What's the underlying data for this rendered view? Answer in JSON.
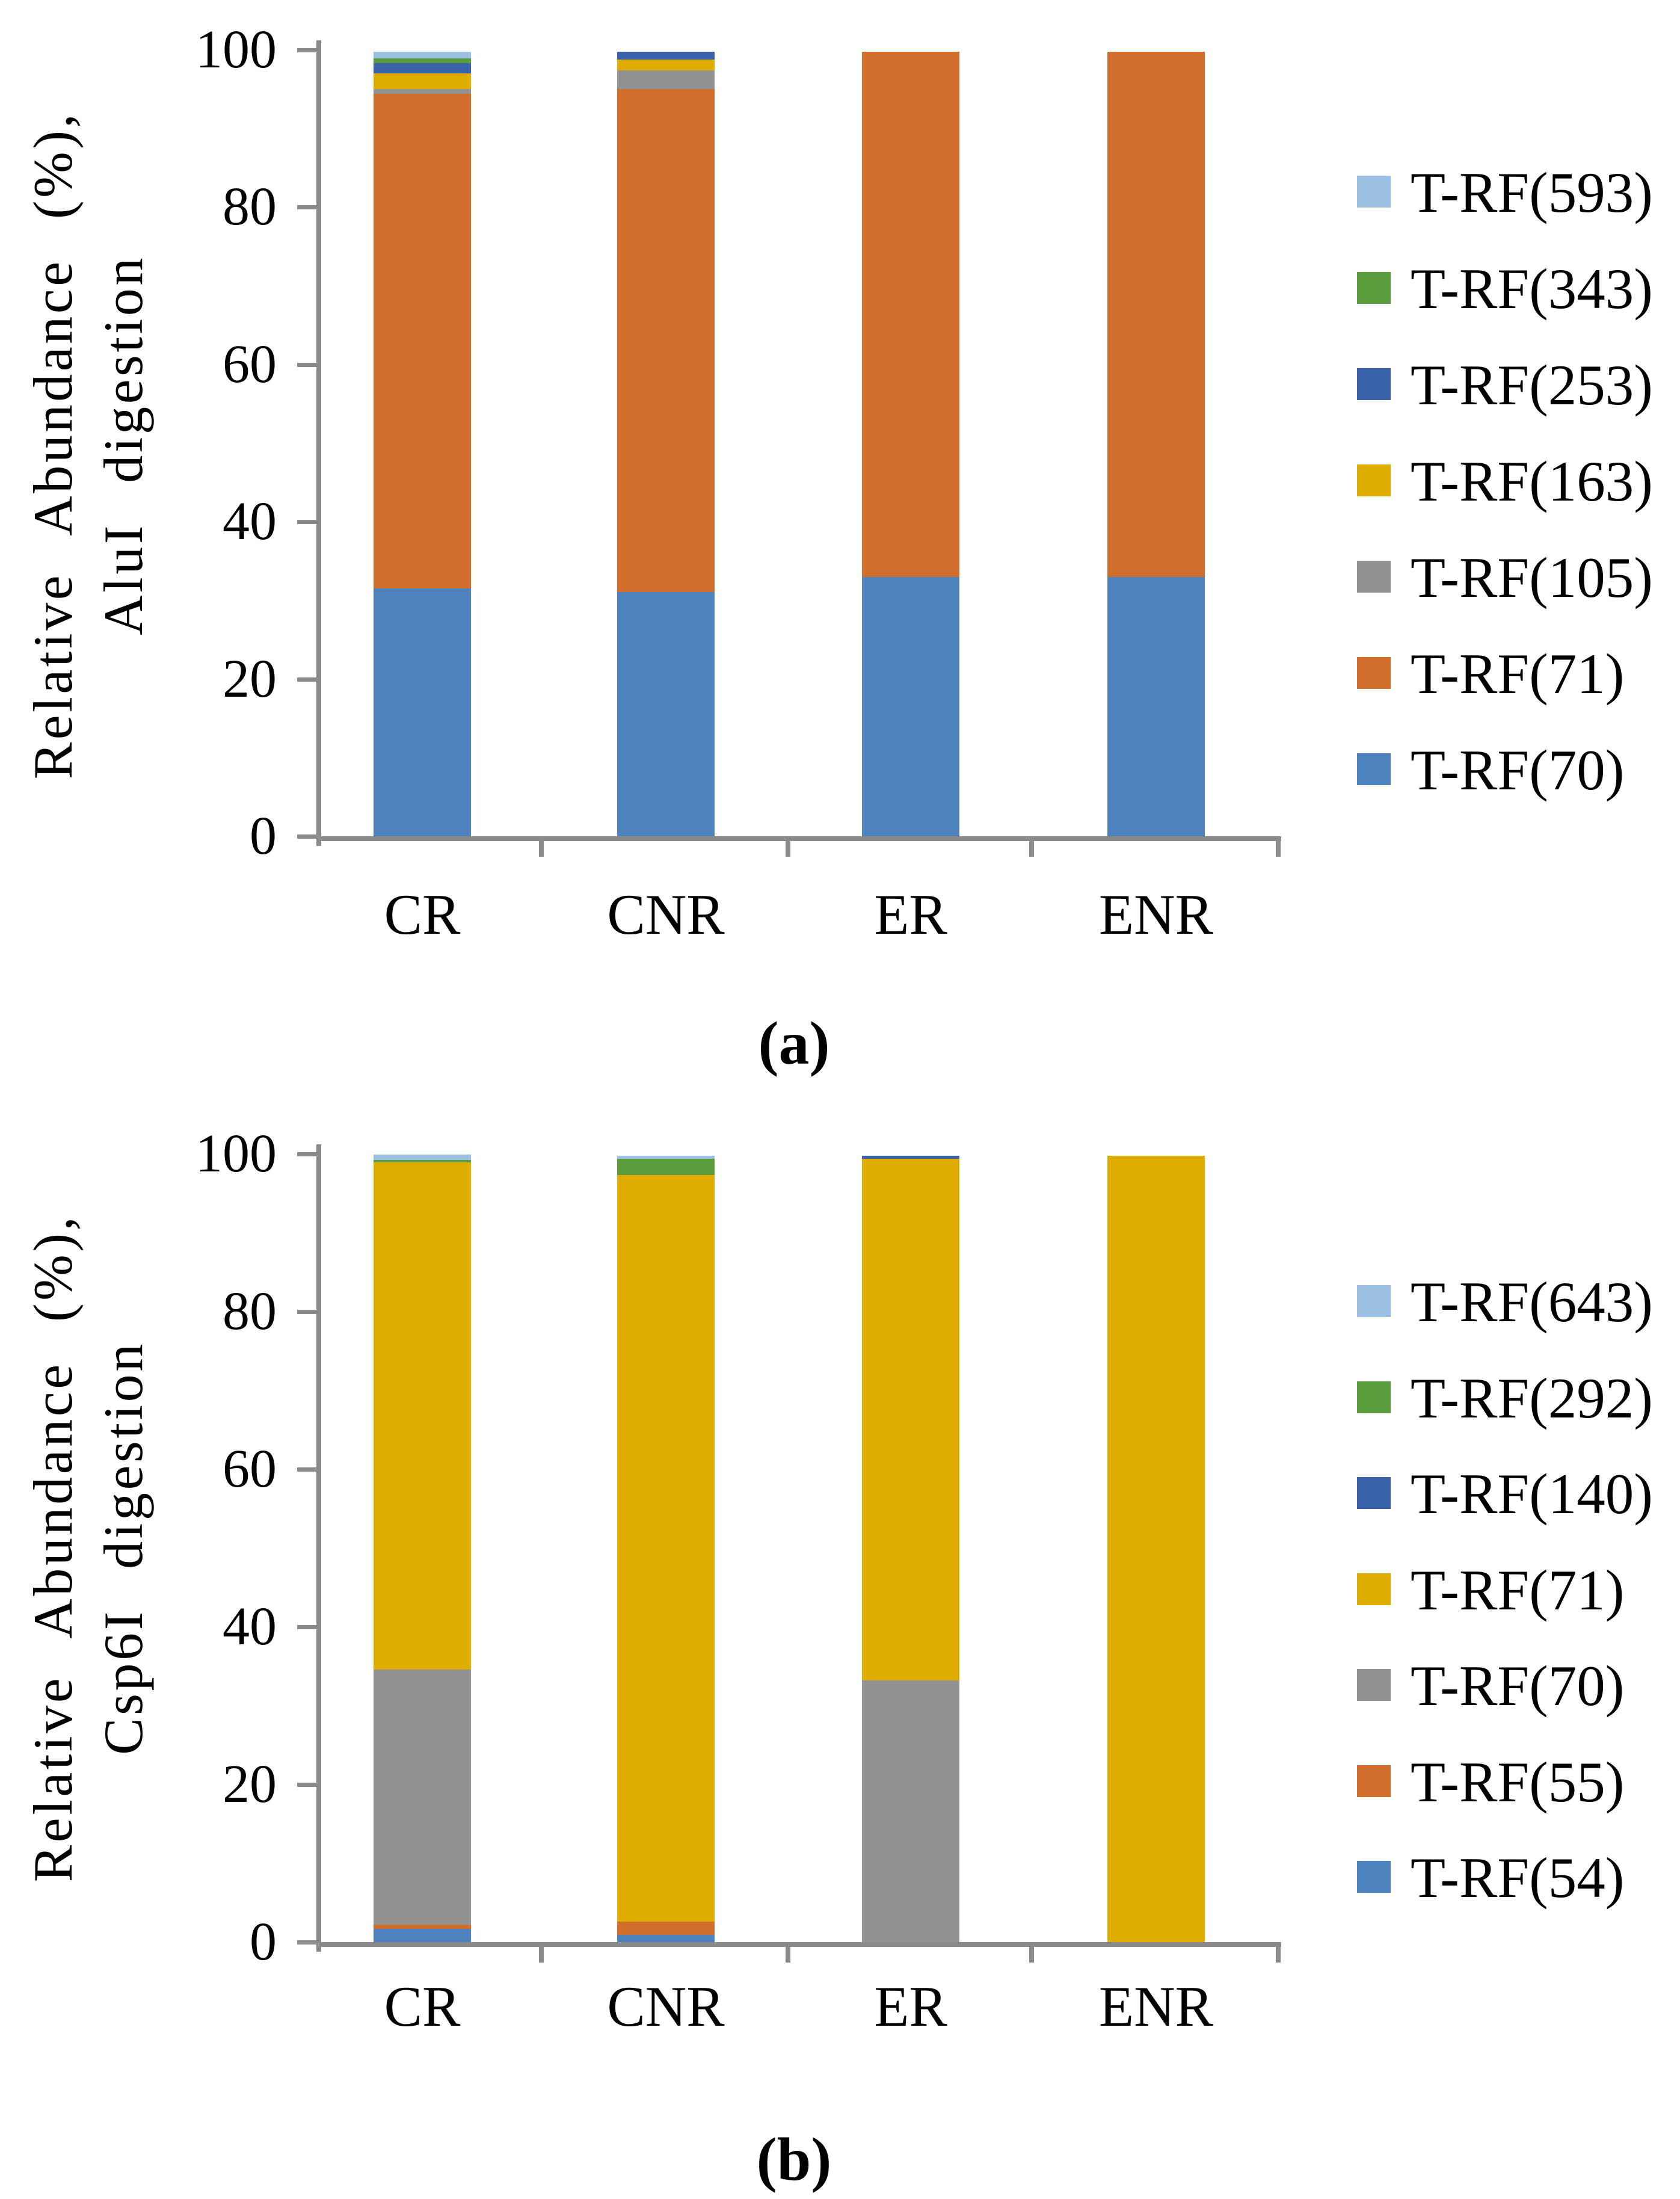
{
  "figure": {
    "background": "#ffffff",
    "caption_a": "(a)",
    "caption_b": "(b)"
  },
  "colors": {
    "axis": "#8a8a8a",
    "text": "#000000",
    "blue": "#4e82bc",
    "orange": "#d26e2b",
    "gray": "#929292",
    "yellow": "#dfac00",
    "navy": "#3a62ab",
    "green": "#5a9b3c",
    "light_blue": "#9dc1e4"
  },
  "chart_data": [
    {
      "type": "bar",
      "stacked": true,
      "caption": "(a)",
      "ylabel_line1": "Relative Abundance (%),",
      "ylabel_line2": "AluI digestion",
      "xlabel": "",
      "categories": [
        "CR",
        "CNR",
        "ER",
        "ENR"
      ],
      "ylim": [
        0,
        100
      ],
      "yticks": [
        0,
        20,
        40,
        60,
        80,
        100
      ],
      "grid": false,
      "legend_position": "right",
      "series": [
        {
          "name": "T-RF(70)",
          "color": "#4e82bc",
          "values": [
            31.5,
            31.1,
            33.0,
            33.0
          ]
        },
        {
          "name": "T-RF(71)",
          "color": "#d26e2b",
          "values": [
            62.9,
            63.9,
            66.8,
            66.8
          ]
        },
        {
          "name": "T-RF(105)",
          "color": "#929292",
          "values": [
            0.6,
            2.4,
            0,
            0
          ]
        },
        {
          "name": "T-RF(163)",
          "color": "#dfac00",
          "values": [
            2.0,
            1.4,
            0,
            0
          ]
        },
        {
          "name": "T-RF(253)",
          "color": "#3a62ab",
          "values": [
            1.3,
            1.0,
            0,
            0
          ]
        },
        {
          "name": "T-RF(343)",
          "color": "#5a9b3c",
          "values": [
            0.6,
            0,
            0,
            0
          ]
        },
        {
          "name": "T-RF(593)",
          "color": "#9dc1e4",
          "values": [
            0.9,
            0,
            0,
            0
          ]
        }
      ],
      "legend_top_to_bottom": [
        "T-RF(593)",
        "T-RF(343)",
        "T-RF(253)",
        "T-RF(163)",
        "T-RF(105)",
        "T-RF(71)",
        "T-RF(70)"
      ]
    },
    {
      "type": "bar",
      "stacked": true,
      "caption": "(b)",
      "ylabel_line1": "Relative Abundance (%),",
      "ylabel_line2": "Csp6I digestion",
      "xlabel": "",
      "categories": [
        "CR",
        "CNR",
        "ER",
        "ENR"
      ],
      "ylim": [
        0,
        100
      ],
      "yticks": [
        0,
        20,
        40,
        60,
        80,
        100
      ],
      "grid": false,
      "legend_position": "right",
      "series": [
        {
          "name": "T-RF(54)",
          "color": "#4e82bc",
          "values": [
            1.7,
            0.9,
            0,
            0
          ]
        },
        {
          "name": "T-RF(55)",
          "color": "#d26e2b",
          "values": [
            0.5,
            1.7,
            0,
            0
          ]
        },
        {
          "name": "T-RF(70)",
          "color": "#929292",
          "values": [
            32.4,
            0,
            33.2,
            0
          ]
        },
        {
          "name": "T-RF(71)",
          "color": "#dfac00",
          "values": [
            64.3,
            94.7,
            66.2,
            99.8
          ]
        },
        {
          "name": "T-RF(140)",
          "color": "#3a62ab",
          "values": [
            0,
            0,
            0.4,
            0
          ]
        },
        {
          "name": "T-RF(292)",
          "color": "#5a9b3c",
          "values": [
            0.3,
            2.1,
            0,
            0
          ]
        },
        {
          "name": "T-RF(643)",
          "color": "#9dc1e4",
          "values": [
            0.7,
            0.4,
            0,
            0
          ]
        }
      ],
      "legend_top_to_bottom": [
        "T-RF(643)",
        "T-RF(292)",
        "T-RF(140)",
        "T-RF(71)",
        "T-RF(70)",
        "T-RF(55)",
        "T-RF(54)"
      ]
    }
  ]
}
